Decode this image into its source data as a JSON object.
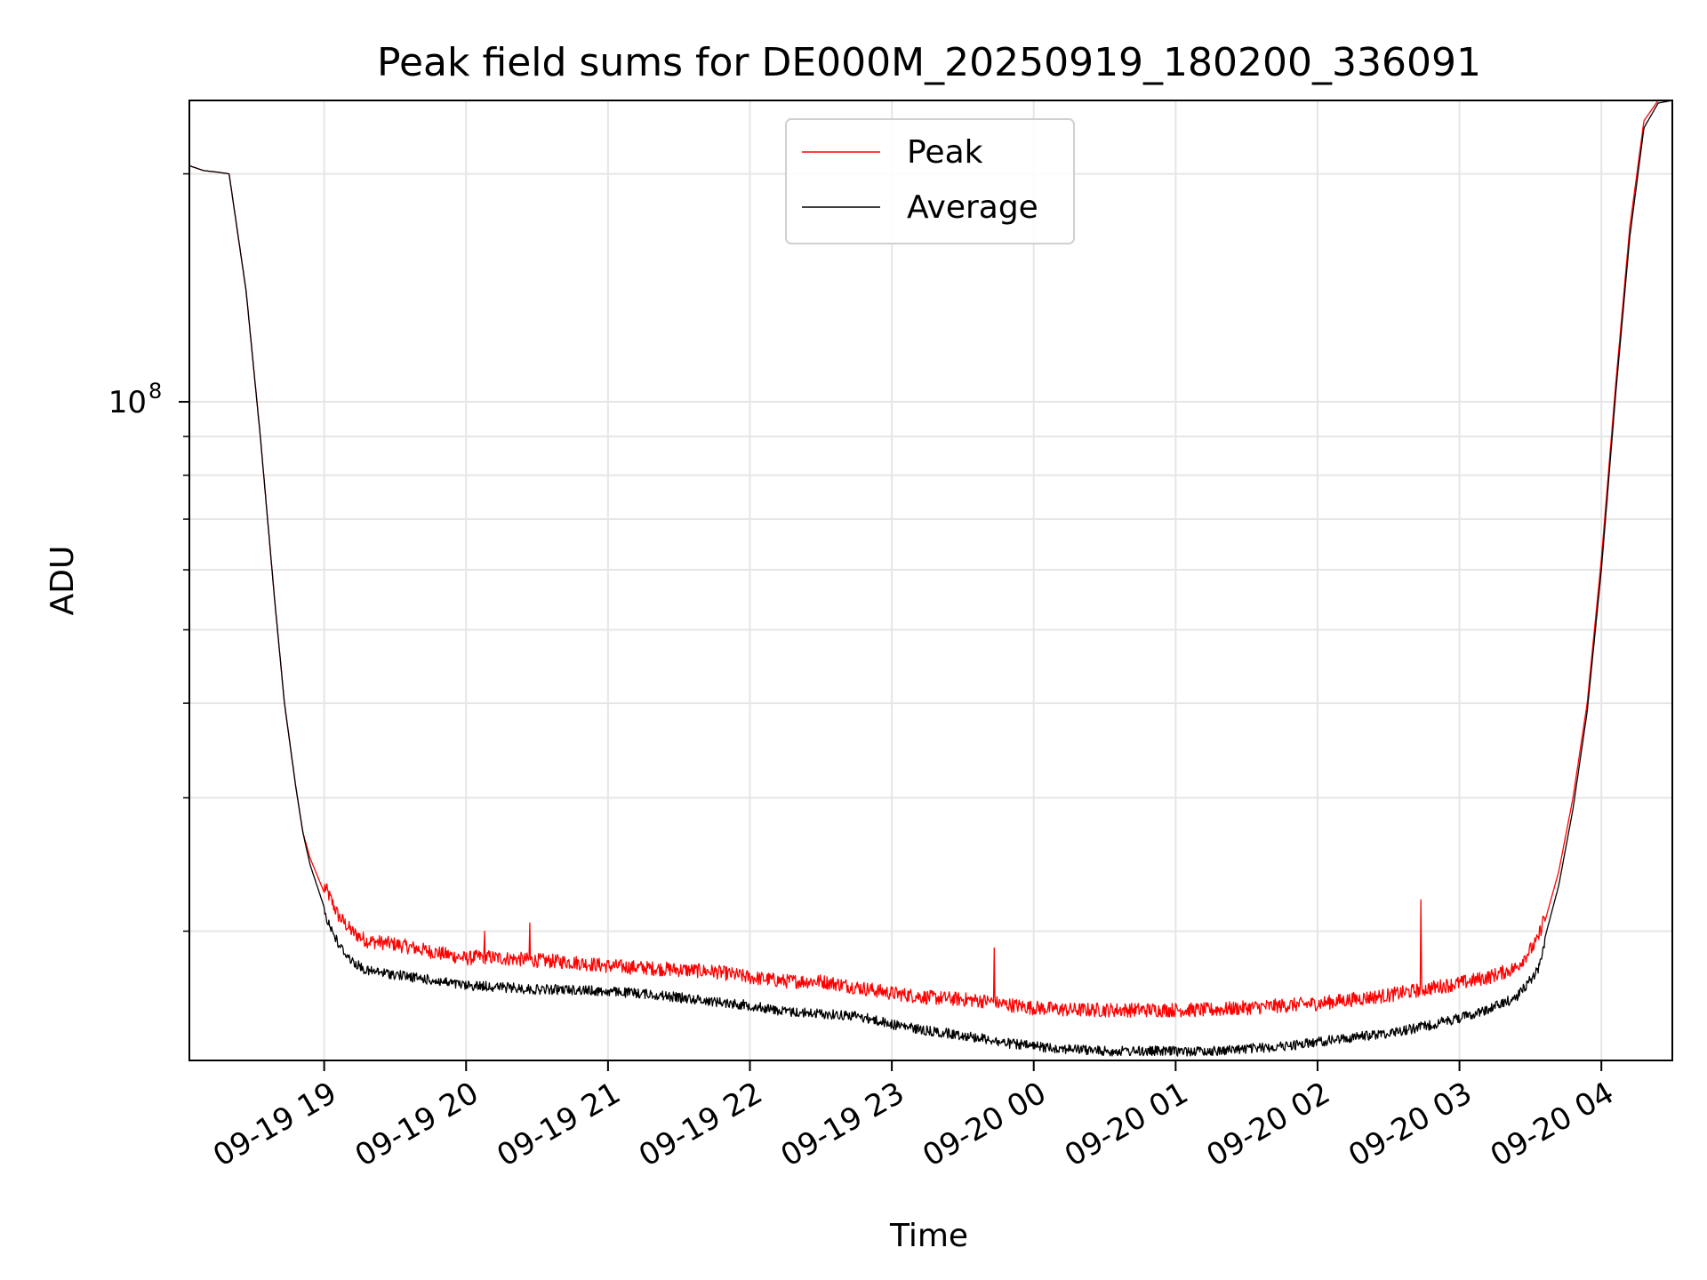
{
  "chart_data": {
    "type": "line",
    "title": "Peak field sums for DE000M_20250919_180200_336091",
    "xlabel": "Time",
    "ylabel": "ADU",
    "yscale": "log",
    "ylim": [
      13500000,
      250000000
    ],
    "xlim_hours": [
      18.05,
      28.5
    ],
    "x_ticks": [
      {
        "hour": 19,
        "label": "09-19 19"
      },
      {
        "hour": 20,
        "label": "09-19 20"
      },
      {
        "hour": 21,
        "label": "09-19 21"
      },
      {
        "hour": 22,
        "label": "09-19 22"
      },
      {
        "hour": 23,
        "label": "09-19 23"
      },
      {
        "hour": 24,
        "label": "09-20 00"
      },
      {
        "hour": 25,
        "label": "09-20 01"
      },
      {
        "hour": 26,
        "label": "09-20 02"
      },
      {
        "hour": 27,
        "label": "09-20 03"
      },
      {
        "hour": 28,
        "label": "09-20 04"
      }
    ],
    "y_major_tick": {
      "value": 100000000,
      "base": "10",
      "exponent": "8"
    },
    "grid": true,
    "legend_position": "top-center",
    "series": [
      {
        "name": "Peak",
        "color": "#ff0000",
        "x_hours": [
          18.05,
          18.15,
          18.25,
          18.33,
          18.45,
          18.55,
          18.65,
          18.72,
          18.8,
          18.85,
          18.9,
          19.0,
          19.1,
          19.2,
          19.3,
          19.5,
          19.75,
          20.0,
          20.1,
          20.3,
          20.5,
          20.75,
          21.0,
          21.25,
          21.5,
          21.75,
          22.0,
          22.25,
          22.5,
          22.75,
          23.0,
          23.25,
          23.5,
          23.7,
          23.75,
          24.0,
          24.25,
          24.5,
          24.75,
          25.0,
          25.25,
          25.5,
          25.75,
          26.0,
          26.25,
          26.5,
          26.75,
          27.0,
          27.2,
          27.4,
          27.55,
          27.7,
          27.8,
          27.9,
          28.0,
          28.1,
          28.2,
          28.3,
          28.4,
          28.5
        ],
        "values": [
          205000000,
          202000000,
          201000000,
          200000000,
          140000000,
          90000000,
          55000000,
          40000000,
          31000000,
          27000000,
          25000000,
          22500000,
          20500000,
          19500000,
          19000000,
          18800000,
          18400000,
          18000000,
          18100000,
          18000000,
          17900000,
          17800000,
          17600000,
          17500000,
          17400000,
          17300000,
          17000000,
          16800000,
          16800000,
          16500000,
          16200000,
          16000000,
          15900000,
          15800000,
          15700000,
          15500000,
          15400000,
          15400000,
          15400000,
          15400000,
          15400000,
          15500000,
          15600000,
          15700000,
          15900000,
          16100000,
          16400000,
          16700000,
          17000000,
          17500000,
          19000000,
          24000000,
          30000000,
          40000000,
          62000000,
          105000000,
          170000000,
          235000000,
          250000000,
          252000000
        ],
        "spikes": [
          {
            "hour": 20.13,
            "value": 20000000
          },
          {
            "hour": 20.45,
            "value": 20500000
          },
          {
            "hour": 23.72,
            "value": 19000000
          },
          {
            "hour": 26.73,
            "value": 22000000
          }
        ]
      },
      {
        "name": "Average",
        "color": "#000000",
        "x_hours": [
          18.05,
          18.15,
          18.25,
          18.33,
          18.45,
          18.55,
          18.65,
          18.72,
          18.8,
          18.85,
          18.9,
          19.0,
          19.1,
          19.2,
          19.3,
          19.5,
          19.75,
          20.0,
          20.1,
          20.3,
          20.5,
          20.75,
          21.0,
          21.25,
          21.5,
          21.75,
          22.0,
          22.25,
          22.5,
          22.75,
          23.0,
          23.25,
          23.5,
          23.7,
          23.75,
          24.0,
          24.25,
          24.5,
          24.75,
          25.0,
          25.25,
          25.5,
          25.75,
          26.0,
          26.25,
          26.5,
          26.75,
          27.0,
          27.2,
          27.4,
          27.55,
          27.7,
          27.8,
          27.9,
          28.0,
          28.1,
          28.2,
          28.3,
          28.4,
          28.5
        ],
        "values": [
          205000000,
          202000000,
          201000000,
          200000000,
          140000000,
          90000000,
          55000000,
          40000000,
          31000000,
          27000000,
          24500000,
          21500000,
          19500000,
          18500000,
          18000000,
          17800000,
          17500000,
          17200000,
          17200000,
          17100000,
          17000000,
          17000000,
          16900000,
          16800000,
          16600000,
          16400000,
          16200000,
          15900000,
          15800000,
          15700000,
          15300000,
          15000000,
          14800000,
          14600000,
          14500000,
          14300000,
          14200000,
          14100000,
          14100000,
          14100000,
          14100000,
          14200000,
          14300000,
          14500000,
          14700000,
          14900000,
          15200000,
          15600000,
          16000000,
          16600000,
          18000000,
          23000000,
          29000000,
          39000000,
          60000000,
          102000000,
          165000000,
          230000000,
          248000000,
          250000000
        ]
      }
    ]
  }
}
